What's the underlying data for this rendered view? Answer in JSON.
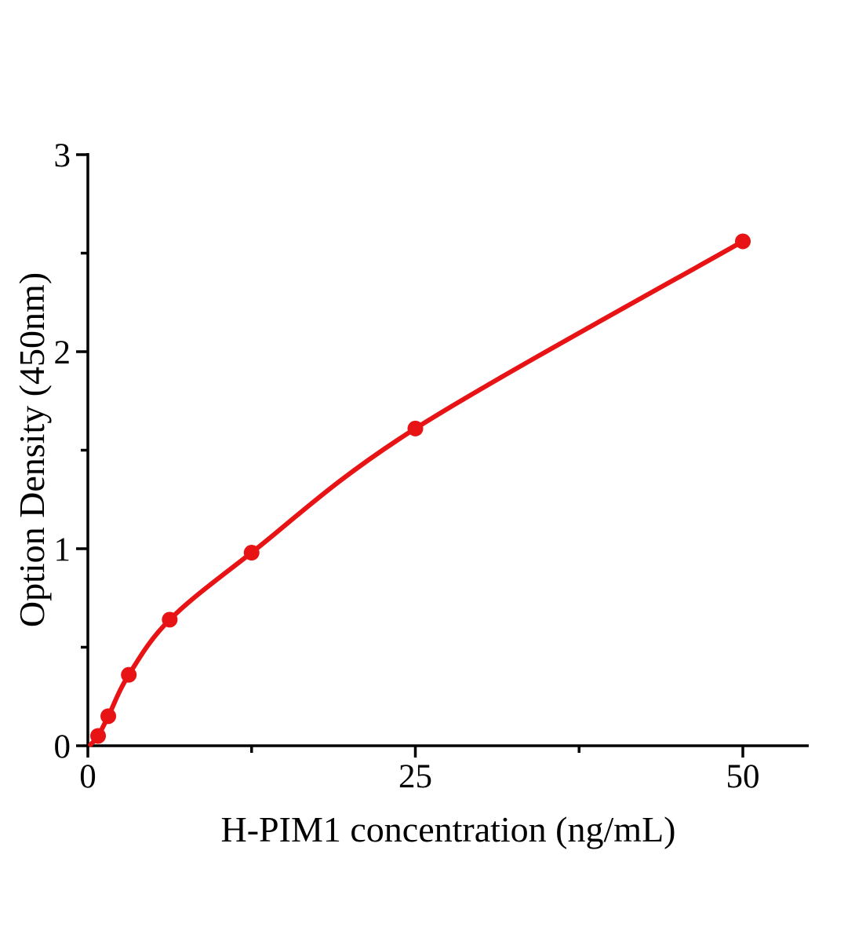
{
  "figure": {
    "background_color": "#ffffff"
  },
  "chart_data": {
    "type": "scatter",
    "curve": "smooth-line-through-points",
    "title": "",
    "xlabel": "H-PIM1 concentration (ng/mL)",
    "ylabel": "Option Density (450nm)",
    "x": [
      0.78,
      1.56,
      3.125,
      6.25,
      12.5,
      25,
      50
    ],
    "y": [
      0.05,
      0.15,
      0.36,
      0.64,
      0.98,
      1.61,
      2.56
    ],
    "xlim": [
      0,
      55
    ],
    "ylim": [
      0,
      3
    ],
    "x_major_ticks": [
      0,
      25,
      50
    ],
    "x_minor_ticks": [
      12.5,
      37.5
    ],
    "y_major_ticks": [
      0,
      1,
      2,
      3
    ],
    "y_minor_ticks": [
      0.5,
      1.5,
      2.5
    ],
    "grid": false,
    "legend": "none",
    "colors": {
      "curve": "#e81315",
      "marker": "#e81315",
      "axis": "#000000",
      "text": "#000000"
    }
  }
}
